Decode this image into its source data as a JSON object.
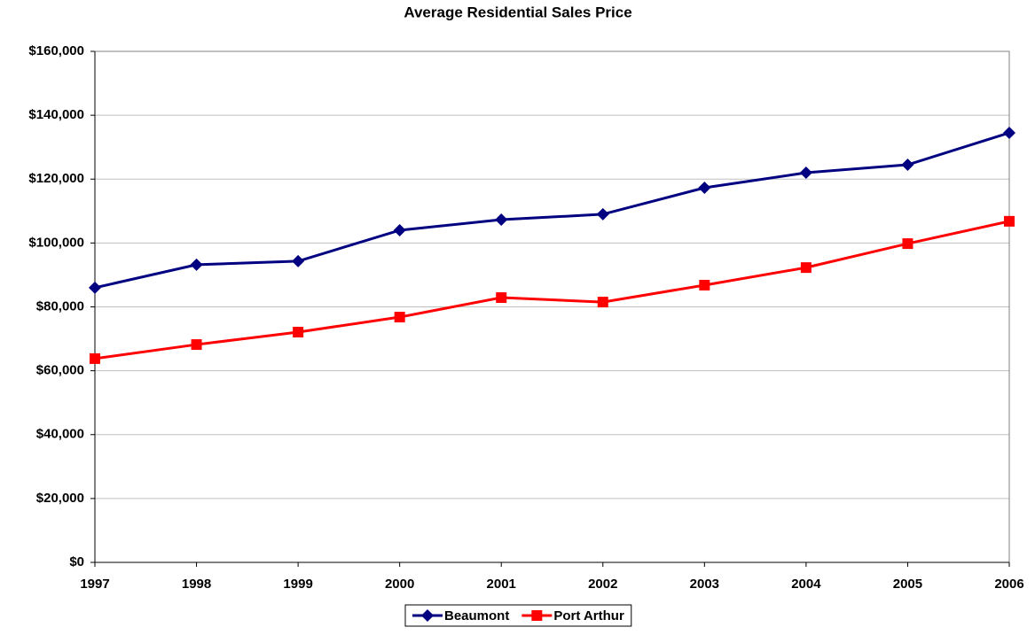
{
  "chart_data": {
    "type": "line",
    "title": "Average Residential Sales Price",
    "x": [
      1997,
      1998,
      1999,
      2000,
      2001,
      2002,
      2003,
      2004,
      2005,
      2006
    ],
    "xlim": [
      1997,
      2006
    ],
    "xticks": [
      1997,
      1998,
      1999,
      2000,
      2001,
      2002,
      2003,
      2004,
      2005,
      2006
    ],
    "series": [
      {
        "name": "Beaumont",
        "color": "#000080",
        "marker": "diamond",
        "values": [
          86000,
          93200,
          94300,
          104000,
          107300,
          109000,
          117300,
          122000,
          124500,
          134500
        ]
      },
      {
        "name": "Port Arthur",
        "color": "#ff0000",
        "marker": "square",
        "values": [
          63800,
          68200,
          72100,
          76800,
          82900,
          81500,
          86800,
          92300,
          99800,
          106800
        ]
      }
    ],
    "ylim": [
      0,
      160000
    ],
    "yticks": [
      {
        "value": 0,
        "label": "$0"
      },
      {
        "value": 20000,
        "label": "$20,000"
      },
      {
        "value": 40000,
        "label": "$40,000"
      },
      {
        "value": 60000,
        "label": "$60,000"
      },
      {
        "value": 80000,
        "label": "$80,000"
      },
      {
        "value": 100000,
        "label": "$100,000"
      },
      {
        "value": 120000,
        "label": "$120,000"
      },
      {
        "value": 140000,
        "label": "$140,000"
      },
      {
        "value": 160000,
        "label": "$160,000"
      }
    ],
    "grid": true,
    "legend": "bottom"
  }
}
